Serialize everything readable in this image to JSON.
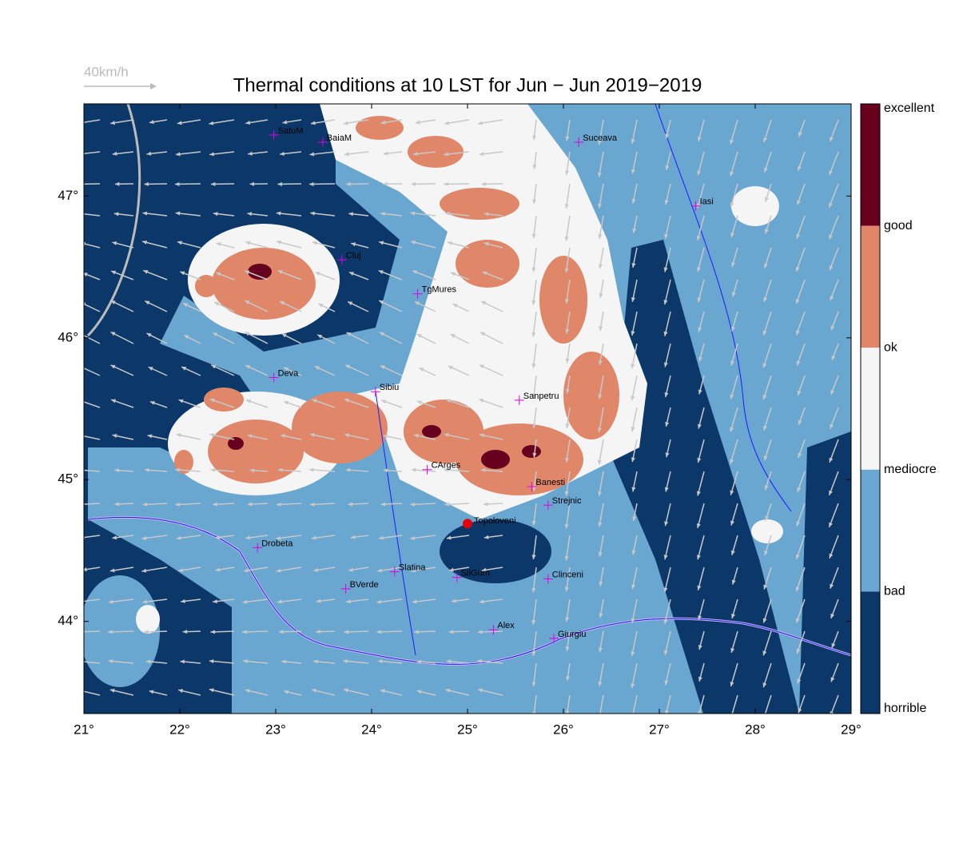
{
  "title": "Thermal conditions at 10 LST for Jun − Jun  2019−2019",
  "wind_scale": "40km/h",
  "map": {
    "xlim": [
      21,
      29
    ],
    "ylim": [
      43.35,
      47.65
    ],
    "xticks": [
      {
        "value": 21,
        "label": "21°"
      },
      {
        "value": 22,
        "label": "22°"
      },
      {
        "value": 23,
        "label": "23°"
      },
      {
        "value": 24,
        "label": "24°"
      },
      {
        "value": 25,
        "label": "25°"
      },
      {
        "value": 26,
        "label": "26°"
      },
      {
        "value": 27,
        "label": "27°"
      },
      {
        "value": 28,
        "label": "28°"
      },
      {
        "value": 29,
        "label": "29°"
      }
    ],
    "yticks": [
      {
        "value": 44,
        "label": "44°"
      },
      {
        "value": 45,
        "label": "45°"
      },
      {
        "value": 46,
        "label": "46°"
      },
      {
        "value": 47,
        "label": "47°"
      }
    ],
    "cities": [
      {
        "name": "SatuM",
        "lon": 22.98,
        "lat": 47.43
      },
      {
        "name": "BaiaM",
        "lon": 23.49,
        "lat": 47.38
      },
      {
        "name": "Suceava",
        "lon": 26.16,
        "lat": 47.38
      },
      {
        "name": "Iasi",
        "lon": 27.38,
        "lat": 46.93
      },
      {
        "name": "Cluj",
        "lon": 23.69,
        "lat": 46.55
      },
      {
        "name": "TgMures",
        "lon": 24.48,
        "lat": 46.31
      },
      {
        "name": "Deva",
        "lon": 22.98,
        "lat": 45.72
      },
      {
        "name": "Sibiu",
        "lon": 24.04,
        "lat": 45.62
      },
      {
        "name": "Sanpetru",
        "lon": 25.54,
        "lat": 45.56
      },
      {
        "name": "CArges",
        "lon": 24.58,
        "lat": 45.07
      },
      {
        "name": "Banesti",
        "lon": 25.67,
        "lat": 44.95
      },
      {
        "name": "Strejnic",
        "lon": 25.84,
        "lat": 44.82
      },
      {
        "name": "Drobeta",
        "lon": 22.81,
        "lat": 44.52
      },
      {
        "name": "Slatina",
        "lon": 24.24,
        "lat": 44.35
      },
      {
        "name": "SilGum",
        "lon": 24.89,
        "lat": 44.31
      },
      {
        "name": "Clinceni",
        "lon": 25.84,
        "lat": 44.3
      },
      {
        "name": "BVerde",
        "lon": 23.73,
        "lat": 44.23
      },
      {
        "name": "Alex",
        "lon": 25.27,
        "lat": 43.94
      },
      {
        "name": "Giurgiu",
        "lon": 25.9,
        "lat": 43.88
      }
    ],
    "site": {
      "name": "Topoloveni",
      "lon": 25.0,
      "lat": 44.69,
      "color": "#e8000b"
    }
  },
  "colorbar": {
    "labels": [
      "excellent",
      "good",
      "ok",
      "mediocre",
      "bad",
      "horrible"
    ],
    "colors": [
      "#67001f",
      "#e0876a",
      "#f5f5f5",
      "#6aa7d0",
      "#0b3868"
    ]
  }
}
